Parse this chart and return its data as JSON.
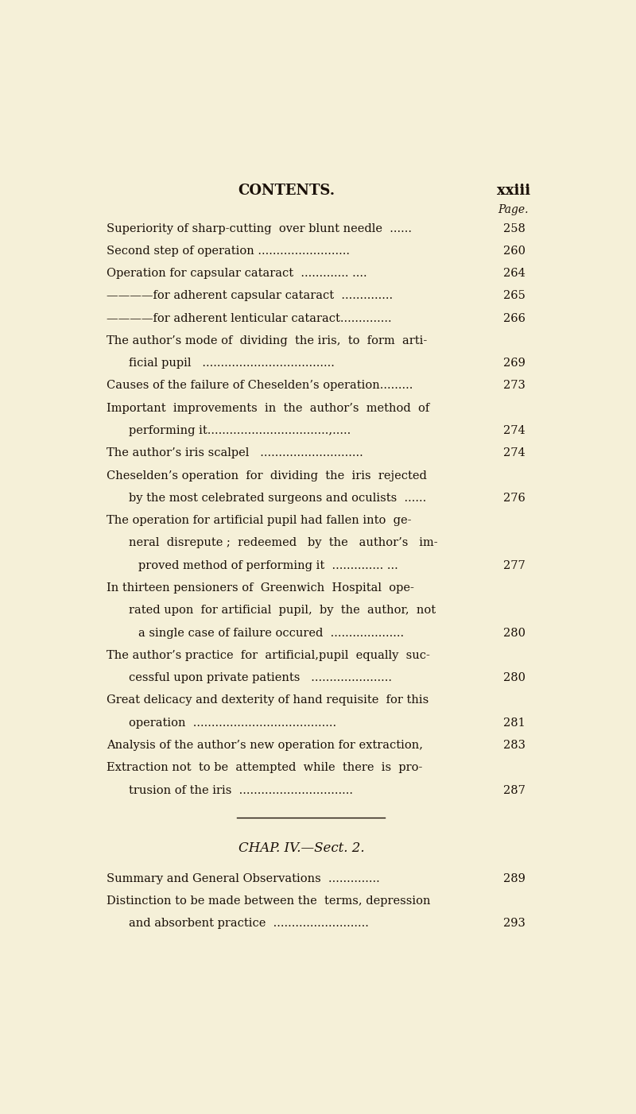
{
  "background_color": "#f5f0d8",
  "title": "CONTENTS.",
  "page_label": "xxiii",
  "page_word": "Page.",
  "figsize": [
    8.0,
    14.02
  ],
  "dpi": 100,
  "entries": [
    {
      "text": "Superiority of sharp-cutting  over blunt needle  ......",
      "indent": 0,
      "page": "258"
    },
    {
      "text": "Second step of operation .........................",
      "indent": 0,
      "page": "260"
    },
    {
      "text": "Operation for capsular cataract  ............. ....",
      "indent": 0,
      "page": "264"
    },
    {
      "text": "————for adherent capsular cataract  ..............",
      "indent": 0,
      "page": "265"
    },
    {
      "text": "————for adherent lenticular cataract..............",
      "indent": 0,
      "page": "266"
    },
    {
      "text": "The author’s mode of  dividing  the iris,  to  form  arti-",
      "indent": 0,
      "page": ""
    },
    {
      "text": "ficial pupil   ....................................",
      "indent": 1,
      "page": "269"
    },
    {
      "text": "Causes of the failure of Cheselden’s operation.........",
      "indent": 0,
      "page": "273"
    },
    {
      "text": "Important  improvements  in  the  author’s  method  of",
      "indent": 0,
      "page": ""
    },
    {
      "text": "performing it.................................,.....",
      "indent": 1,
      "page": "274"
    },
    {
      "text": "The author’s iris scalpel   ............................",
      "indent": 0,
      "page": "274"
    },
    {
      "text": "Cheselden’s operation  for  dividing  the  iris  rejected",
      "indent": 0,
      "page": ""
    },
    {
      "text": "by the most celebrated surgeons and oculists  ......",
      "indent": 1,
      "page": "276"
    },
    {
      "text": "The operation for artificial pupil had fallen into  ge-",
      "indent": 0,
      "page": ""
    },
    {
      "text": "neral  disrepute ;  redeemed   by  the   author’s   im-",
      "indent": 1,
      "page": ""
    },
    {
      "text": "proved method of performing it  .............. ...",
      "indent": 2,
      "page": "277"
    },
    {
      "text": "In thirteen pensioners of  Greenwich  Hospital  ope-",
      "indent": 0,
      "page": ""
    },
    {
      "text": "rated upon  for artificial  pupil,  by  the  author,  not",
      "indent": 1,
      "page": ""
    },
    {
      "text": "a single case of failure occured  ....................",
      "indent": 2,
      "page": "280"
    },
    {
      "text": "The author’s practice  for  artificial,pupil  equally  suc-",
      "indent": 0,
      "page": ""
    },
    {
      "text": "cessful upon private patients   ......................",
      "indent": 1,
      "page": "280"
    },
    {
      "text": "Great delicacy and dexterity of hand requisite  for this",
      "indent": 0,
      "page": ""
    },
    {
      "text": "operation  .......................................",
      "indent": 1,
      "page": "281"
    },
    {
      "text": "Analysis of the author’s new operation for extraction,",
      "indent": 0,
      "page": "283"
    },
    {
      "text": "Extraction not  to be  attempted  while  there  is  pro-",
      "indent": 0,
      "page": ""
    },
    {
      "text": "trusion of the iris  ...............................",
      "indent": 1,
      "page": "287"
    }
  ],
  "chap_header": "CHAP. IV.—Sect. 2.",
  "chap_entries": [
    {
      "text": "Summary and General Observations  ..............",
      "indent": 0,
      "page": "289"
    },
    {
      "text": "Distinction to be made between the  terms, depression",
      "indent": 0,
      "page": ""
    },
    {
      "text": "and absorbent practice  ..........................",
      "indent": 1,
      "page": "293"
    }
  ],
  "text_color": "#1a1008",
  "font_family": "serif"
}
